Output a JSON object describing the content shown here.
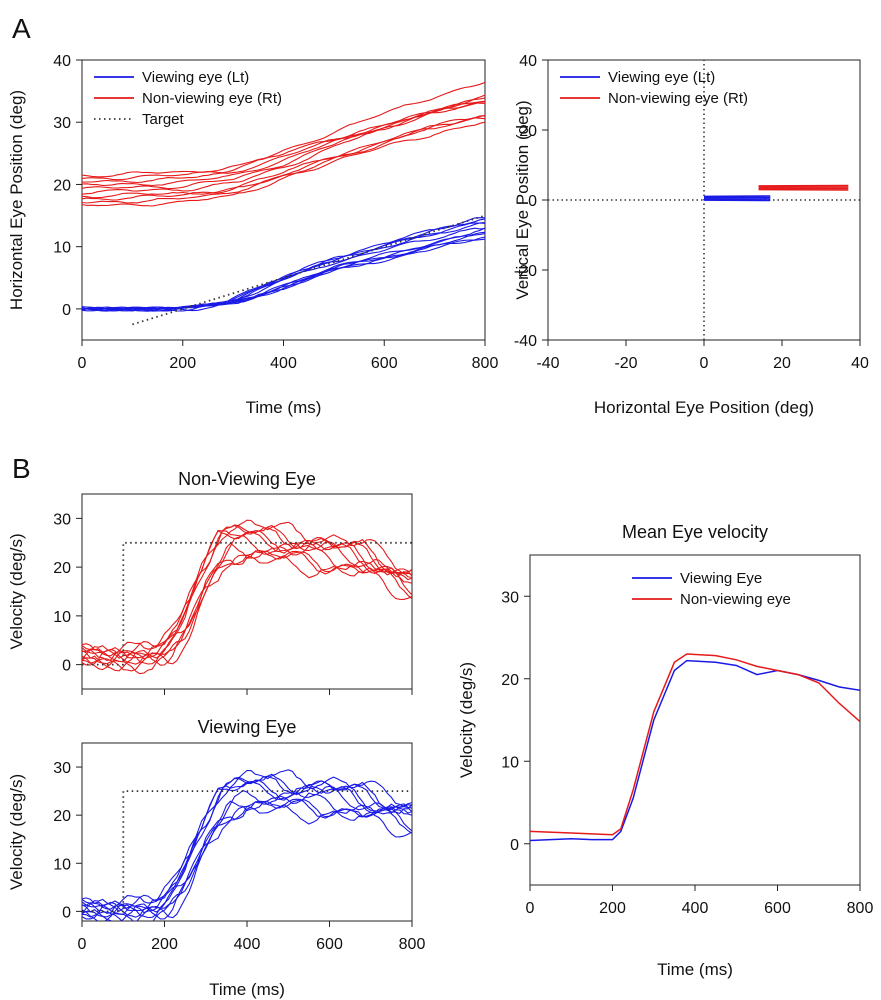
{
  "panel_labels": {
    "a": "A",
    "b": "B"
  },
  "colors": {
    "viewing": "#1a1ae6",
    "non_viewing": "#e61a1a",
    "target": "#333333",
    "axis": "#222222"
  },
  "chart_data": [
    {
      "id": "a-left",
      "type": "line",
      "title": "",
      "xlabel": "Time (ms)",
      "ylabel": "Horizontal Eye Position (deg)",
      "xlim": [
        0,
        800
      ],
      "ylim": [
        -5,
        40
      ],
      "xticks": [
        0,
        200,
        400,
        600,
        800
      ],
      "yticks": [
        0,
        10,
        20,
        30,
        40
      ],
      "legend": {
        "position": "top-left",
        "entries": [
          "Viewing eye (Lt)",
          "Non-viewing eye (Rt)",
          "Target"
        ]
      },
      "series": [
        {
          "name": "Viewing eye (Lt)",
          "color": "#1a1ae6",
          "x": [
            0,
            200,
            300,
            400,
            500,
            600,
            700,
            800
          ],
          "y": [
            0,
            0,
            1,
            4,
            7,
            9,
            11,
            13
          ]
        },
        {
          "name": "Non-viewing eye (Rt)",
          "color": "#e61a1a",
          "x": [
            0,
            200,
            300,
            400,
            500,
            600,
            700,
            800
          ],
          "y": [
            19,
            19.5,
            20.5,
            23,
            26,
            28.5,
            31,
            33
          ]
        },
        {
          "name": "Target",
          "color": "#333333",
          "dash": "dotted",
          "x": [
            100,
            800
          ],
          "y": [
            -2.5,
            15
          ]
        }
      ]
    },
    {
      "id": "a-right",
      "type": "line",
      "title": "",
      "xlabel": "Horizontal Eye Position (deg)",
      "ylabel": "Vertical Eye Position (deg)",
      "xlim": [
        -40,
        40
      ],
      "ylim": [
        -40,
        40
      ],
      "xticks": [
        -40,
        -20,
        0,
        20,
        40
      ],
      "yticks": [
        -40,
        -20,
        0,
        20,
        40
      ],
      "legend": {
        "position": "top-left",
        "entries": [
          "Viewing eye (Lt)",
          "Non-viewing eye (Rt)"
        ]
      },
      "series": [
        {
          "name": "Viewing eye (Lt)",
          "color": "#1a1ae6",
          "x": [
            0,
            17
          ],
          "y": [
            0.5,
            0.5
          ]
        },
        {
          "name": "Non-viewing eye (Rt)",
          "color": "#e61a1a",
          "x": [
            14,
            37
          ],
          "y": [
            3.5,
            3.5
          ]
        }
      ]
    },
    {
      "id": "b-nonviewing",
      "type": "line",
      "title": "Non-Viewing Eye",
      "xlabel": "",
      "ylabel": "Velocity (deg/s)",
      "xlim": [
        0,
        800
      ],
      "ylim": [
        -5,
        35
      ],
      "xticks": [
        0,
        200,
        400,
        600,
        800
      ],
      "yticks": [
        0,
        10,
        20,
        30
      ],
      "series": [
        {
          "name": "",
          "color": "#e61a1a",
          "x": [
            0,
            100,
            200,
            250,
            300,
            350,
            400,
            500,
            600,
            700,
            800
          ],
          "y": [
            2,
            1.5,
            2,
            7,
            18,
            25,
            25,
            24,
            23,
            21,
            17
          ]
        },
        {
          "name": "",
          "color": "#333333",
          "dash": "dotted",
          "x": [
            0,
            100,
            100,
            800
          ],
          "y": [
            0,
            0,
            25,
            25
          ]
        }
      ]
    },
    {
      "id": "b-viewing",
      "type": "line",
      "title": "Viewing Eye",
      "xlabel": "Time (ms)",
      "ylabel": "Velocity (deg/s)",
      "xlim": [
        0,
        800
      ],
      "ylim": [
        -2,
        35
      ],
      "xticks": [
        0,
        200,
        400,
        600,
        800
      ],
      "yticks": [
        0,
        10,
        20,
        30
      ],
      "series": [
        {
          "name": "",
          "color": "#1a1ae6",
          "x": [
            0,
            100,
            200,
            250,
            300,
            350,
            400,
            500,
            600,
            700,
            800
          ],
          "y": [
            0.5,
            0.3,
            0.5,
            6,
            16,
            23,
            24.5,
            24,
            24,
            22,
            20
          ]
        },
        {
          "name": "",
          "color": "#333333",
          "dash": "dotted",
          "x": [
            0,
            100,
            100,
            800
          ],
          "y": [
            0,
            0,
            25,
            25
          ]
        }
      ]
    },
    {
      "id": "b-mean",
      "type": "line",
      "title": "Mean Eye velocity",
      "xlabel": "Time (ms)",
      "ylabel": "Velocity (deg/s)",
      "xlim": [
        0,
        800
      ],
      "ylim": [
        -5,
        35
      ],
      "xticks": [
        0,
        200,
        400,
        600,
        800
      ],
      "yticks": [
        0,
        10,
        20,
        30
      ],
      "legend": {
        "position": "top-right",
        "entries": [
          "Viewing Eye",
          "Non-viewing eye"
        ]
      },
      "series": [
        {
          "name": "Viewing Eye",
          "color": "#1a1ae6",
          "x": [
            0,
            100,
            150,
            200,
            220,
            250,
            300,
            350,
            380,
            450,
            500,
            550,
            600,
            650,
            700,
            750,
            800
          ],
          "y": [
            0.4,
            0.6,
            0.5,
            0.5,
            1.5,
            5.5,
            15,
            21,
            22.2,
            22,
            21.6,
            20.5,
            21,
            20.5,
            19.8,
            19,
            18.6
          ]
        },
        {
          "name": "Non-viewing eye",
          "color": "#e61a1a",
          "x": [
            0,
            100,
            150,
            200,
            220,
            250,
            300,
            350,
            380,
            450,
            500,
            550,
            600,
            650,
            700,
            750,
            800
          ],
          "y": [
            1.5,
            1.3,
            1.2,
            1.1,
            1.8,
            6.5,
            16,
            22,
            23,
            22.8,
            22.3,
            21.5,
            21,
            20.5,
            19.5,
            17,
            14.8
          ]
        }
      ]
    }
  ]
}
